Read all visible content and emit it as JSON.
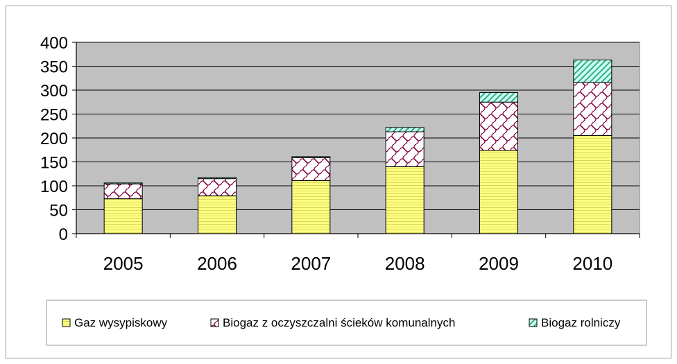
{
  "chart_data": {
    "type": "bar",
    "stacked": true,
    "categories": [
      "2005",
      "2006",
      "2007",
      "2008",
      "2009",
      "2010"
    ],
    "series": [
      {
        "name": "Gaz wysypiskowy",
        "values": [
          73,
          79,
          111,
          140,
          174,
          205
        ],
        "color": "#ffff80",
        "pattern": "horizontal-stripes"
      },
      {
        "name": "Biogaz z oczyszczalni ścieków komunalnych",
        "values": [
          31,
          36,
          48,
          73,
          101,
          111
        ],
        "color": "#ffffff",
        "pattern": "wave-crosshatch",
        "pattern_color": "#800040"
      },
      {
        "name": "Biogaz rolniczy",
        "values": [
          2,
          2,
          2,
          9,
          20,
          47
        ],
        "color": "#ccffee",
        "pattern": "diagonal-stripes",
        "pattern_color": "#00a080"
      }
    ],
    "yticks": [
      "0",
      "50",
      "100",
      "150",
      "200",
      "250",
      "300",
      "350",
      "400"
    ],
    "ylim": [
      0,
      400
    ],
    "grid": true,
    "legend_position": "bottom",
    "plot_background": "#c0c0c0"
  }
}
